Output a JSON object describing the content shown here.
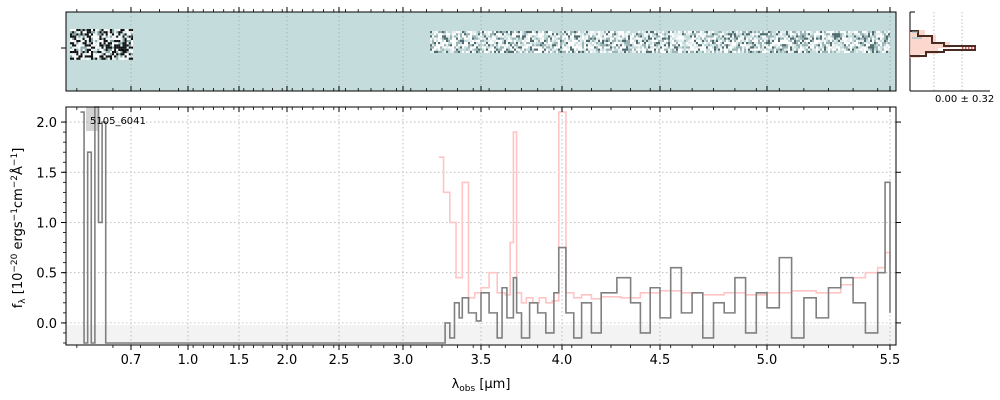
{
  "chart_data": {
    "type": "line",
    "object_id": "5105_6041",
    "spectrum_2d": {
      "panel_background": "#c4dcdb",
      "stat_label": "0.00 ± 0.32"
    },
    "xlabel": "λobs [μm]",
    "xlabel_main": "λ",
    "xlabel_sub": "obs",
    "xlabel_unit": "[μm]",
    "ylabel": "fλ [10−20 ergs−1cm−2Å−1]",
    "ylabel_parts": {
      "f": "f",
      "f_sub": "λ",
      "p1": "[10",
      "e1": "−20",
      "p2": " ergs",
      "e2": "−1",
      "p3": "cm",
      "e3": "−2",
      "p4": "Å",
      "e4": "−1",
      "p5": "]"
    },
    "x_ticks": [
      {
        "label": "0.7",
        "value": 0.7
      },
      {
        "label": "1.0",
        "value": 1.0
      },
      {
        "label": "1.5",
        "value": 1.5
      },
      {
        "label": "2.0",
        "value": 2.0
      },
      {
        "label": "2.5",
        "value": 2.5
      },
      {
        "label": "3.0",
        "value": 3.0
      },
      {
        "label": "3.5",
        "value": 3.5
      },
      {
        "label": "4.0",
        "value": 4.0
      },
      {
        "label": "4.5",
        "value": 4.5
      },
      {
        "label": "5.0",
        "value": 5.0
      },
      {
        "label": "5.5",
        "value": 5.5
      }
    ],
    "y_ticks": [
      "0.0",
      "0.5",
      "1.0",
      "1.5",
      "2.0"
    ],
    "ylim": [
      -0.22,
      2.15
    ],
    "grid": true,
    "colors": {
      "flux": "#808080",
      "model": "#ffc4c4",
      "shade": "#f0f0f0",
      "grid": "#b0b0b0"
    },
    "series": [
      {
        "x": [
          0.56,
          0.57,
          0.58,
          0.59,
          0.6,
          0.61,
          0.62,
          0.63,
          3.27,
          3.3,
          3.33,
          3.36,
          3.38,
          3.42,
          3.47,
          3.5,
          3.55,
          3.6,
          3.63,
          3.66,
          3.7,
          3.72,
          3.75,
          3.8,
          3.85,
          3.9,
          3.95,
          3.98,
          4.02,
          4.06,
          4.1,
          4.15,
          4.2,
          4.28,
          4.35,
          4.4,
          4.45,
          4.5,
          4.55,
          4.6,
          4.65,
          4.7,
          4.75,
          4.8,
          4.85,
          4.9,
          4.95,
          5.0,
          5.05,
          5.1,
          5.15,
          5.2,
          5.25,
          5.3,
          5.35,
          5.4,
          5.45,
          5.48,
          5.5
        ],
        "y": [
          2.1,
          -0.2,
          1.7,
          -0.2,
          2.2,
          1.0,
          2.0,
          -0.2,
          0.0,
          -0.15,
          0.2,
          0.05,
          0.25,
          0.1,
          0.02,
          0.3,
          0.1,
          -0.15,
          0.35,
          0.05,
          0.45,
          0.1,
          -0.15,
          0.2,
          0.1,
          -0.1,
          0.3,
          0.75,
          0.1,
          -0.15,
          0.2,
          -0.1,
          0.3,
          0.45,
          0.2,
          -0.1,
          0.35,
          0.05,
          0.55,
          0.1,
          0.3,
          -0.15,
          0.2,
          0.1,
          0.45,
          -0.1,
          0.3,
          0.15,
          0.65,
          -0.15,
          0.25,
          0.05,
          0.35,
          0.45,
          0.2,
          -0.1,
          0.5,
          1.4,
          0.1
        ]
      },
      {
        "x": [
          3.23,
          3.26,
          3.3,
          3.34,
          3.38,
          3.42,
          3.46,
          3.5,
          3.55,
          3.6,
          3.65,
          3.68,
          3.7,
          3.72,
          3.75,
          3.78,
          3.82,
          3.86,
          3.9,
          3.94,
          3.98,
          4.02,
          4.06,
          4.1,
          4.15,
          4.2,
          4.3,
          4.4,
          4.5,
          4.6,
          4.7,
          4.8,
          4.9,
          5.0,
          5.1,
          5.2,
          5.3,
          5.35,
          5.4,
          5.45,
          5.48,
          5.5
        ],
        "y": [
          1.65,
          1.3,
          1.0,
          0.45,
          1.4,
          0.25,
          0.3,
          0.35,
          0.5,
          0.3,
          0.28,
          0.8,
          1.9,
          0.3,
          0.2,
          0.25,
          0.2,
          0.25,
          0.2,
          0.22,
          2.1,
          0.3,
          0.25,
          0.28,
          0.24,
          0.26,
          0.25,
          0.3,
          0.32,
          0.3,
          0.28,
          0.3,
          0.28,
          0.3,
          0.32,
          0.3,
          0.38,
          0.45,
          0.5,
          0.55,
          0.7,
          0.6
        ]
      }
    ]
  }
}
